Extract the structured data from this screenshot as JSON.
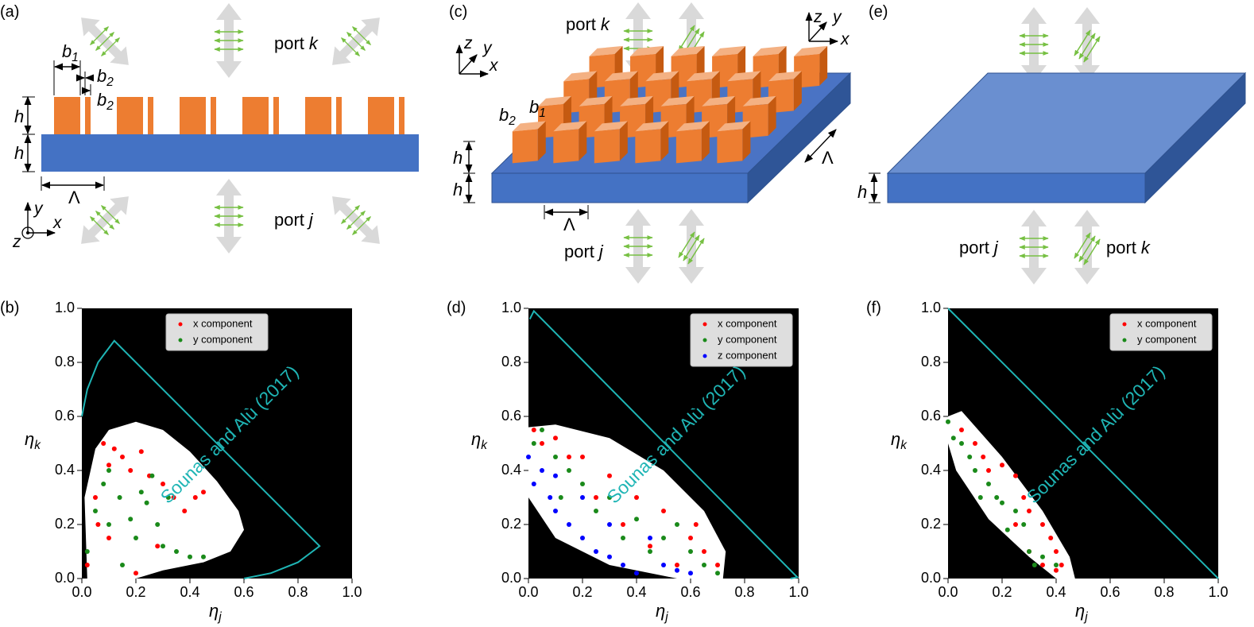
{
  "diagram_a": {
    "label": "(a)",
    "b1": {
      "var": "b",
      "sub": "1"
    },
    "b2_top": {
      "var": "b",
      "sub": "2"
    },
    "b2_bottom": {
      "var": "b",
      "sub": "2"
    },
    "h_top": "h",
    "h_bottom": "h",
    "period": "Λ",
    "port_k": {
      "word": "port",
      "var": "k"
    },
    "port_j": {
      "word": "port",
      "var": "j"
    },
    "axes": {
      "x": "x",
      "y": "y",
      "z": "z"
    }
  },
  "diagram_c": {
    "label": "(c)",
    "b1": {
      "var": "b",
      "sub": "1"
    },
    "b2": {
      "var": "b",
      "sub": "2"
    },
    "h_top": "h",
    "h_bottom": "h",
    "period_front": "Λ",
    "period_side": "Λ",
    "port_k": {
      "word": "port",
      "var": "k"
    },
    "port_j": {
      "word": "port",
      "var": "j"
    },
    "axes_left": {
      "x": "x",
      "y": "y",
      "z": "z"
    },
    "axes_right": {
      "x": "x",
      "y": "y",
      "z": "z"
    }
  },
  "diagram_e": {
    "label": "(e)",
    "h": "h",
    "port_j": {
      "word": "port",
      "var": "j"
    },
    "port_k": {
      "word": "port",
      "var": "k"
    }
  },
  "chart_data": [
    {
      "type": "scatter",
      "panel_label": "(b)",
      "facecolor": "#000000",
      "xlim": [
        0,
        1
      ],
      "ylim": [
        0,
        1
      ],
      "xticks": [
        {
          "value": 0,
          "label": "0.0"
        },
        0.2,
        0.4,
        0.6,
        0.8,
        {
          "value": 1,
          "label": "1.0"
        }
      ],
      "yticks": [
        {
          "value": 0,
          "label": "0.0"
        },
        0.2,
        0.4,
        0.6,
        0.8,
        {
          "value": 1,
          "label": "1.0"
        }
      ],
      "xlabel": {
        "symbol": "η",
        "sub": "j"
      },
      "ylabel": {
        "symbol": "η",
        "sub": "k"
      },
      "annotation": "Sounas and Alù (2017)",
      "legend": "upper center",
      "bound": {
        "color": "#1fb5b5",
        "x": [
          0,
          0.02,
          0.06,
          0.12,
          0.88,
          0.8,
          0.7,
          0.6
        ],
        "y": [
          0.6,
          0.7,
          0.8,
          0.88,
          0.12,
          0.06,
          0.02,
          0
        ]
      },
      "region": {
        "color": "#ffffff",
        "x": [
          0.02,
          0.01,
          0.05,
          0.1,
          0.2,
          0.3,
          0.4,
          0.5,
          0.58,
          0.6,
          0.55,
          0.45,
          0.3,
          0.2
        ],
        "y": [
          0,
          0.3,
          0.48,
          0.55,
          0.58,
          0.55,
          0.47,
          0.36,
          0.25,
          0.18,
          0.1,
          0.06,
          0.03,
          0
        ]
      },
      "series": [
        {
          "name": "x component",
          "color": "#ff0000",
          "x": [
            0.02,
            0.05,
            0.08,
            0.1,
            0.12,
            0.15,
            0.18,
            0.22,
            0.25,
            0.3,
            0.34,
            0.38,
            0.42,
            0.45,
            0.2,
            0.1,
            0.28,
            0.06
          ],
          "y": [
            0.05,
            0.3,
            0.5,
            0.42,
            0.48,
            0.45,
            0.4,
            0.47,
            0.38,
            0.35,
            0.3,
            0.25,
            0.3,
            0.32,
            0.02,
            0.15,
            0.12,
            0.2
          ]
        },
        {
          "name": "y component",
          "color": "#1a8a1a",
          "x": [
            0.02,
            0.05,
            0.08,
            0.1,
            0.14,
            0.18,
            0.2,
            0.24,
            0.28,
            0.3,
            0.35,
            0.4,
            0.45,
            0.15,
            0.22,
            0.1,
            0.32,
            0.26
          ],
          "y": [
            0.1,
            0.25,
            0.35,
            0.2,
            0.3,
            0.22,
            0.15,
            0.28,
            0.2,
            0.12,
            0.1,
            0.08,
            0.08,
            0.05,
            0.32,
            0.4,
            0.3,
            0.38
          ]
        }
      ]
    },
    {
      "type": "scatter",
      "panel_label": "(d)",
      "facecolor": "#000000",
      "xlim": [
        0,
        1
      ],
      "ylim": [
        0,
        1
      ],
      "xticks": [
        {
          "value": 0,
          "label": "0.0"
        },
        0.2,
        0.4,
        0.6,
        0.8,
        {
          "value": 1,
          "label": "1.0"
        }
      ],
      "yticks": [
        {
          "value": 0,
          "label": "0.0"
        },
        0.2,
        0.4,
        0.6,
        0.8,
        {
          "value": 1,
          "label": "1.0"
        }
      ],
      "xlabel": {
        "symbol": "η",
        "sub": "j"
      },
      "ylabel": {
        "symbol": "η",
        "sub": "k"
      },
      "annotation": "Sounas and Alù (2017)",
      "legend": "upper right",
      "bound": {
        "color": "#1fb5b5",
        "x": [
          0.005,
          0.02,
          0.98,
          0.995,
          0.97
        ],
        "y": [
          0.96,
          0.99,
          0.02,
          0.005,
          0
        ]
      },
      "region": {
        "color": "#ffffff",
        "x": [
          0,
          0.1,
          0.3,
          0.5,
          0.65,
          0.73,
          0.72,
          0.55,
          0.3,
          0.1,
          0
        ],
        "y": [
          0.56,
          0.57,
          0.52,
          0.4,
          0.25,
          0.1,
          0,
          0,
          0.05,
          0.15,
          0.3
        ]
      },
      "series": [
        {
          "name": "x component",
          "color": "#ff0000",
          "x": [
            0.02,
            0.05,
            0.1,
            0.2,
            0.3,
            0.4,
            0.5,
            0.6,
            0.65,
            0.7,
            0.55,
            0.45,
            0.35,
            0.62,
            0.25,
            0.15
          ],
          "y": [
            0.55,
            0.5,
            0.52,
            0.45,
            0.38,
            0.3,
            0.25,
            0.15,
            0.1,
            0.05,
            0.05,
            0.12,
            0.2,
            0.2,
            0.3,
            0.45
          ]
        },
        {
          "name": "y component",
          "color": "#1a8a1a",
          "x": [
            0.02,
            0.05,
            0.1,
            0.15,
            0.2,
            0.3,
            0.4,
            0.5,
            0.55,
            0.6,
            0.65,
            0.7,
            0.45,
            0.35,
            0.25,
            0.12
          ],
          "y": [
            0.5,
            0.55,
            0.45,
            0.4,
            0.35,
            0.3,
            0.22,
            0.15,
            0.2,
            0.1,
            0.05,
            0.02,
            0.1,
            0.15,
            0.25,
            0.3
          ]
        },
        {
          "name": "z component",
          "color": "#0000ff",
          "x": [
            0,
            0.02,
            0.05,
            0.08,
            0.1,
            0.15,
            0.2,
            0.25,
            0.3,
            0.35,
            0.4,
            0.5,
            0.55,
            0.6,
            0.45,
            0.3,
            0.2,
            0.1
          ],
          "y": [
            0.45,
            0.35,
            0.4,
            0.3,
            0.25,
            0.2,
            0.15,
            0.1,
            0.08,
            0.05,
            0.02,
            0.05,
            0.03,
            0.02,
            0.15,
            0.2,
            0.3,
            0.38
          ]
        }
      ]
    },
    {
      "type": "scatter",
      "panel_label": "(f)",
      "facecolor": "#000000",
      "xlim": [
        0,
        1
      ],
      "ylim": [
        0,
        1
      ],
      "xticks": [
        {
          "value": 0,
          "label": "0.0"
        },
        0.2,
        0.4,
        0.6,
        0.8,
        {
          "value": 1,
          "label": "1.0"
        }
      ],
      "yticks": [
        {
          "value": 0,
          "label": "0.0"
        },
        0.2,
        0.4,
        0.6,
        0.8,
        {
          "value": 1,
          "label": "1.0"
        }
      ],
      "xlabel": {
        "symbol": "η",
        "sub": "j"
      },
      "ylabel": {
        "symbol": "η",
        "sub": "k"
      },
      "annotation": "Sounas and Alù (2017)",
      "legend": "upper right",
      "bound": {
        "color": "#1fb5b5",
        "x": [
          0,
          1
        ],
        "y": [
          1,
          0
        ]
      },
      "region": {
        "color": "#ffffff",
        "x": [
          0,
          0.05,
          0.2,
          0.35,
          0.45,
          0.47,
          0.4,
          0.3,
          0.15,
          0.03,
          0
        ],
        "y": [
          0.6,
          0.62,
          0.45,
          0.25,
          0.08,
          0,
          0,
          0.08,
          0.22,
          0.4,
          0.5
        ]
      },
      "series": [
        {
          "name": "x component",
          "color": "#ff0000",
          "x": [
            0.05,
            0.1,
            0.13,
            0.15,
            0.2,
            0.25,
            0.28,
            0.3,
            0.35,
            0.38,
            0.4,
            0.42,
            0.4,
            0.35,
            0.3,
            0.25
          ],
          "y": [
            0.55,
            0.5,
            0.45,
            0.4,
            0.42,
            0.38,
            0.3,
            0.25,
            0.2,
            0.15,
            0.1,
            0.05,
            0.03,
            0.05,
            0.1,
            0.2
          ]
        },
        {
          "name": "y component",
          "color": "#1a8a1a",
          "x": [
            0,
            0.02,
            0.05,
            0.08,
            0.1,
            0.15,
            0.18,
            0.2,
            0.25,
            0.28,
            0.3,
            0.32,
            0.35,
            0.4,
            0.22,
            0.12
          ],
          "y": [
            0.58,
            0.52,
            0.5,
            0.45,
            0.4,
            0.35,
            0.3,
            0.28,
            0.25,
            0.2,
            0.1,
            0.05,
            0.08,
            0.05,
            0.18,
            0.3
          ]
        }
      ]
    }
  ]
}
